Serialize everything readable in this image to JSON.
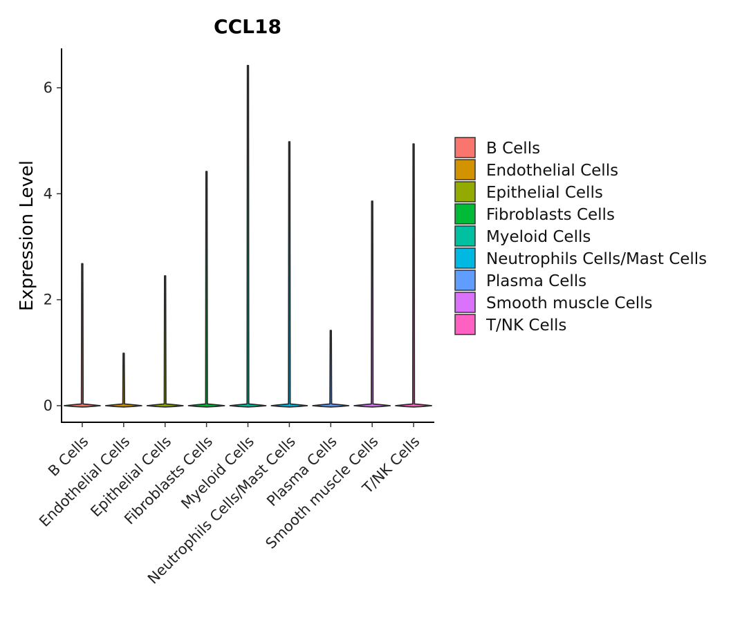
{
  "chart_data": {
    "type": "violin",
    "title": "CCL18",
    "xlabel": "",
    "ylabel": "Expression Level",
    "ylim": [
      -0.3,
      6.75
    ],
    "yticks": [
      0,
      2,
      4,
      6
    ],
    "grid": false,
    "legend_position": "right",
    "categories": [
      "B Cells",
      "Endothelial Cells",
      "Epithelial Cells",
      "Fibroblasts Cells",
      "Myeloid Cells",
      "Neutrophils Cells/Mast Cells",
      "Plasma Cells",
      "Smooth muscle Cells",
      "T/NK Cells"
    ],
    "max_values": [
      2.68,
      0.99,
      2.45,
      4.42,
      6.42,
      4.98,
      1.42,
      3.86,
      4.94
    ],
    "colors": [
      "#F8766D",
      "#D39200",
      "#93AA00",
      "#00BA38",
      "#00C19F",
      "#00B9E3",
      "#619CFF",
      "#DB72FB",
      "#FF61C3"
    ]
  }
}
